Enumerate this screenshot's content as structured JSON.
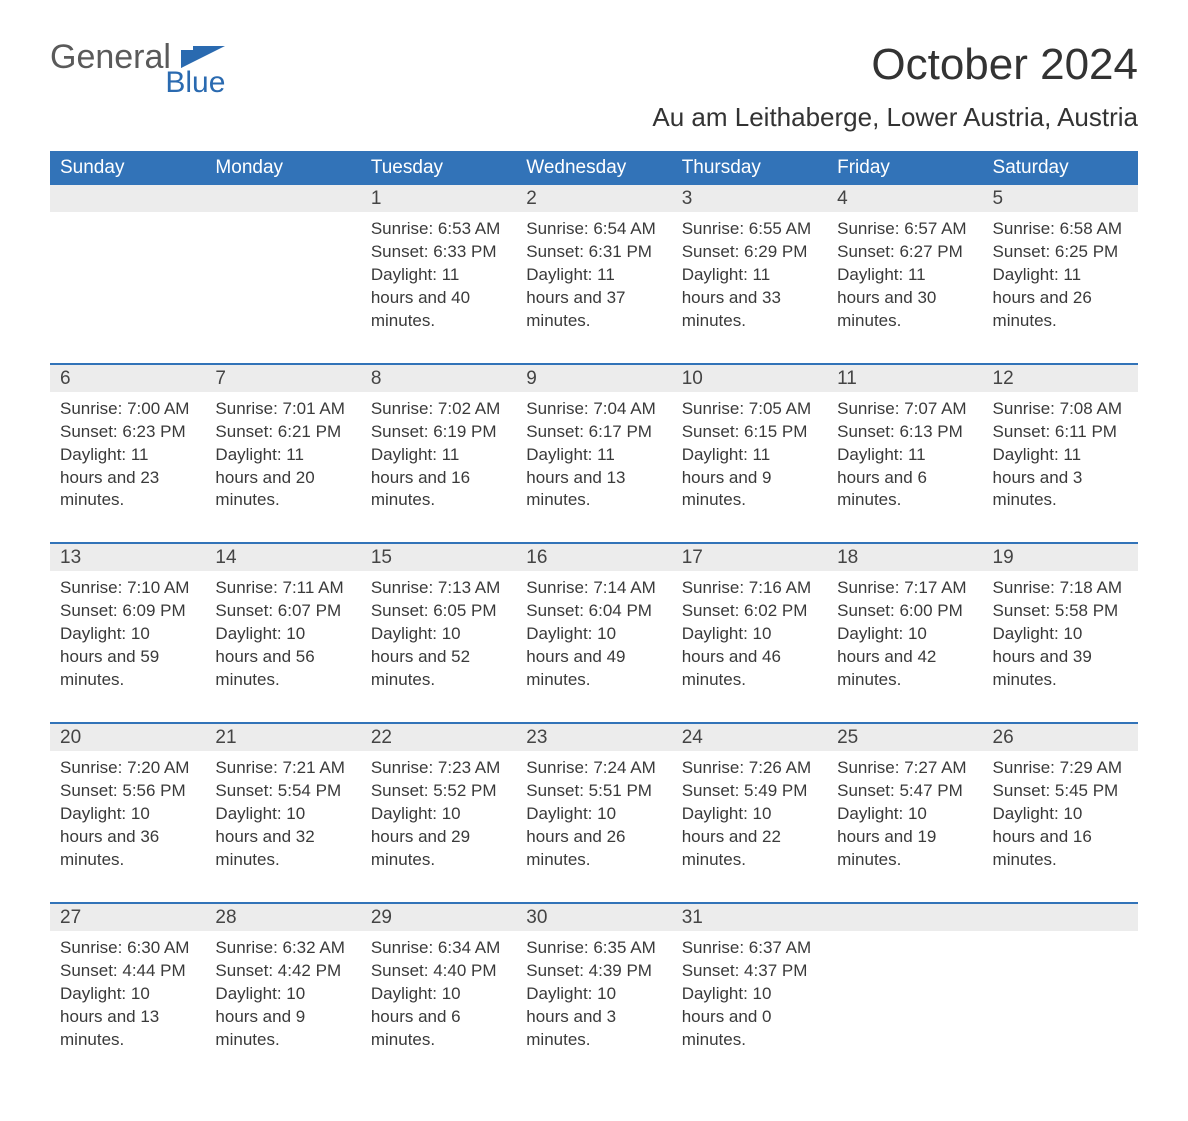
{
  "brand": {
    "word1": "General",
    "word2": "Blue",
    "accent_color": "#2a6ab0"
  },
  "title": "October 2024",
  "location": "Au am Leithaberge, Lower Austria, Austria",
  "header_bg": "#3273b8",
  "header_fg": "#ffffff",
  "daynum_bg": "#ececec",
  "rule_color": "#3273b8",
  "text_color": "#3a3a3a",
  "background": "#ffffff",
  "day_names": [
    "Sunday",
    "Monday",
    "Tuesday",
    "Wednesday",
    "Thursday",
    "Friday",
    "Saturday"
  ],
  "labels": {
    "sunrise": "Sunrise:",
    "sunset": "Sunset:",
    "daylight": "Daylight:"
  },
  "weeks": [
    [
      null,
      null,
      {
        "n": "1",
        "sunrise": "6:53 AM",
        "sunset": "6:33 PM",
        "daylight": "11 hours and 40 minutes."
      },
      {
        "n": "2",
        "sunrise": "6:54 AM",
        "sunset": "6:31 PM",
        "daylight": "11 hours and 37 minutes."
      },
      {
        "n": "3",
        "sunrise": "6:55 AM",
        "sunset": "6:29 PM",
        "daylight": "11 hours and 33 minutes."
      },
      {
        "n": "4",
        "sunrise": "6:57 AM",
        "sunset": "6:27 PM",
        "daylight": "11 hours and 30 minutes."
      },
      {
        "n": "5",
        "sunrise": "6:58 AM",
        "sunset": "6:25 PM",
        "daylight": "11 hours and 26 minutes."
      }
    ],
    [
      {
        "n": "6",
        "sunrise": "7:00 AM",
        "sunset": "6:23 PM",
        "daylight": "11 hours and 23 minutes."
      },
      {
        "n": "7",
        "sunrise": "7:01 AM",
        "sunset": "6:21 PM",
        "daylight": "11 hours and 20 minutes."
      },
      {
        "n": "8",
        "sunrise": "7:02 AM",
        "sunset": "6:19 PM",
        "daylight": "11 hours and 16 minutes."
      },
      {
        "n": "9",
        "sunrise": "7:04 AM",
        "sunset": "6:17 PM",
        "daylight": "11 hours and 13 minutes."
      },
      {
        "n": "10",
        "sunrise": "7:05 AM",
        "sunset": "6:15 PM",
        "daylight": "11 hours and 9 minutes."
      },
      {
        "n": "11",
        "sunrise": "7:07 AM",
        "sunset": "6:13 PM",
        "daylight": "11 hours and 6 minutes."
      },
      {
        "n": "12",
        "sunrise": "7:08 AM",
        "sunset": "6:11 PM",
        "daylight": "11 hours and 3 minutes."
      }
    ],
    [
      {
        "n": "13",
        "sunrise": "7:10 AM",
        "sunset": "6:09 PM",
        "daylight": "10 hours and 59 minutes."
      },
      {
        "n": "14",
        "sunrise": "7:11 AM",
        "sunset": "6:07 PM",
        "daylight": "10 hours and 56 minutes."
      },
      {
        "n": "15",
        "sunrise": "7:13 AM",
        "sunset": "6:05 PM",
        "daylight": "10 hours and 52 minutes."
      },
      {
        "n": "16",
        "sunrise": "7:14 AM",
        "sunset": "6:04 PM",
        "daylight": "10 hours and 49 minutes."
      },
      {
        "n": "17",
        "sunrise": "7:16 AM",
        "sunset": "6:02 PM",
        "daylight": "10 hours and 46 minutes."
      },
      {
        "n": "18",
        "sunrise": "7:17 AM",
        "sunset": "6:00 PM",
        "daylight": "10 hours and 42 minutes."
      },
      {
        "n": "19",
        "sunrise": "7:18 AM",
        "sunset": "5:58 PM",
        "daylight": "10 hours and 39 minutes."
      }
    ],
    [
      {
        "n": "20",
        "sunrise": "7:20 AM",
        "sunset": "5:56 PM",
        "daylight": "10 hours and 36 minutes."
      },
      {
        "n": "21",
        "sunrise": "7:21 AM",
        "sunset": "5:54 PM",
        "daylight": "10 hours and 32 minutes."
      },
      {
        "n": "22",
        "sunrise": "7:23 AM",
        "sunset": "5:52 PM",
        "daylight": "10 hours and 29 minutes."
      },
      {
        "n": "23",
        "sunrise": "7:24 AM",
        "sunset": "5:51 PM",
        "daylight": "10 hours and 26 minutes."
      },
      {
        "n": "24",
        "sunrise": "7:26 AM",
        "sunset": "5:49 PM",
        "daylight": "10 hours and 22 minutes."
      },
      {
        "n": "25",
        "sunrise": "7:27 AM",
        "sunset": "5:47 PM",
        "daylight": "10 hours and 19 minutes."
      },
      {
        "n": "26",
        "sunrise": "7:29 AM",
        "sunset": "5:45 PM",
        "daylight": "10 hours and 16 minutes."
      }
    ],
    [
      {
        "n": "27",
        "sunrise": "6:30 AM",
        "sunset": "4:44 PM",
        "daylight": "10 hours and 13 minutes."
      },
      {
        "n": "28",
        "sunrise": "6:32 AM",
        "sunset": "4:42 PM",
        "daylight": "10 hours and 9 minutes."
      },
      {
        "n": "29",
        "sunrise": "6:34 AM",
        "sunset": "4:40 PM",
        "daylight": "10 hours and 6 minutes."
      },
      {
        "n": "30",
        "sunrise": "6:35 AM",
        "sunset": "4:39 PM",
        "daylight": "10 hours and 3 minutes."
      },
      {
        "n": "31",
        "sunrise": "6:37 AM",
        "sunset": "4:37 PM",
        "daylight": "10 hours and 0 minutes."
      },
      null,
      null
    ]
  ]
}
